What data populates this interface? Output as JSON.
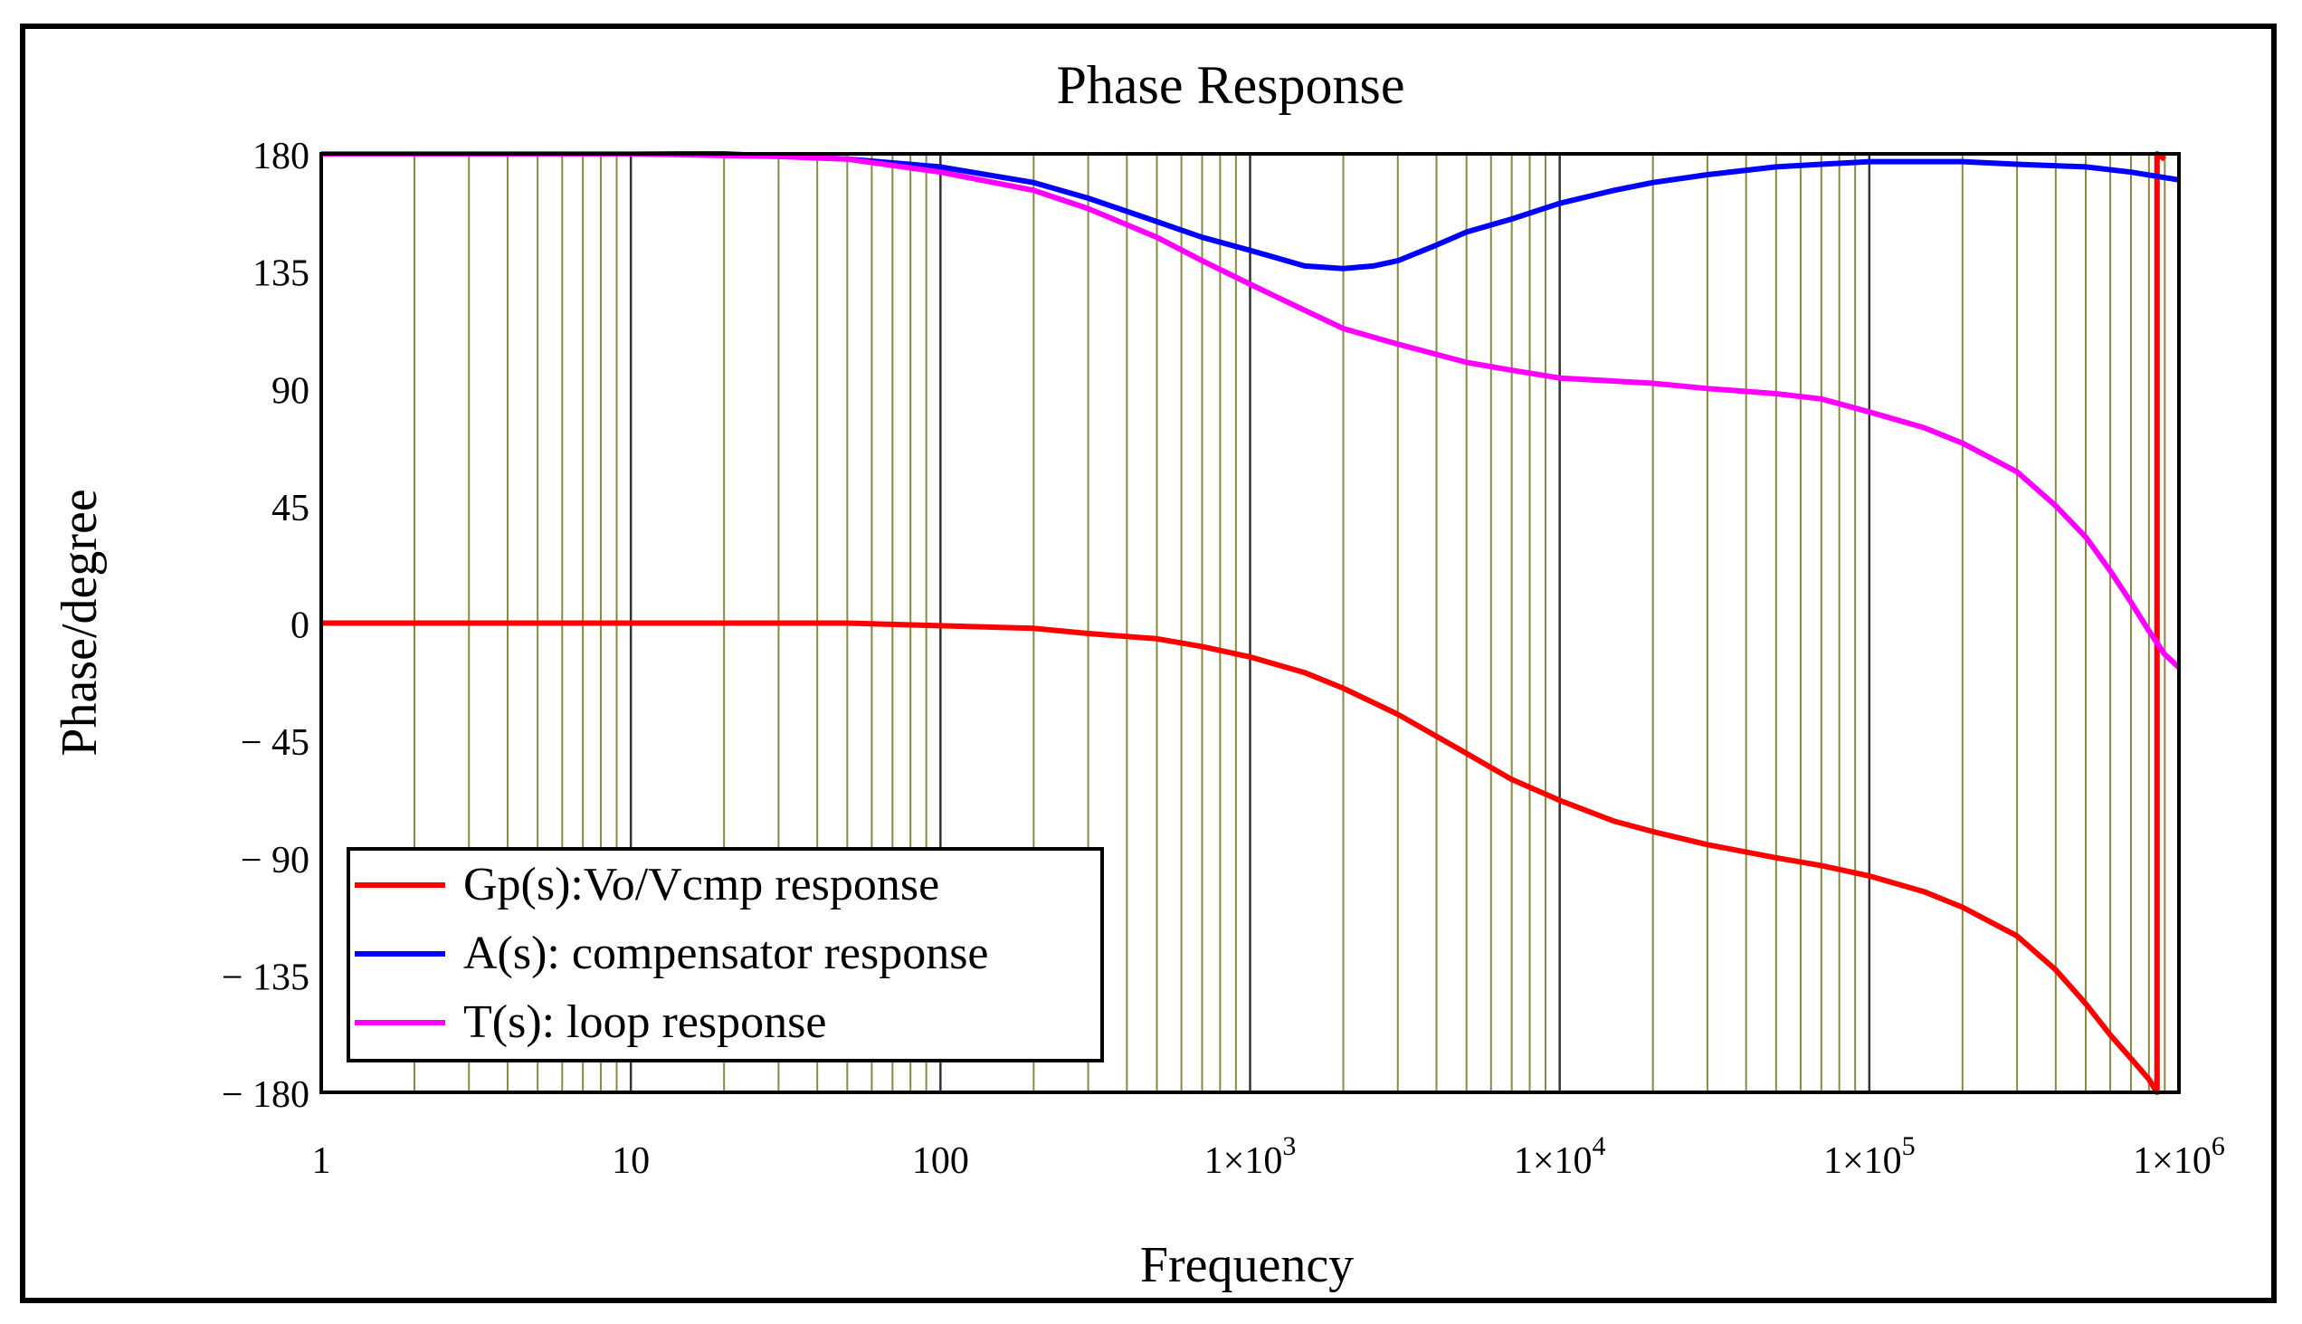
{
  "chart_data": {
    "type": "line",
    "title": "Phase Response",
    "xlabel": "Frequency",
    "ylabel": "Phase/degree",
    "xscale": "log",
    "xlim": [
      1,
      1000000
    ],
    "ylim": [
      -180,
      180
    ],
    "grid": true,
    "y_ticks": [
      180,
      135,
      90,
      45,
      0,
      -45,
      -90,
      -135,
      -180
    ],
    "y_tick_labels": [
      "180",
      "135",
      "90",
      "45",
      "0",
      "− 45",
      "− 90",
      "− 135",
      "− 180"
    ],
    "x_ticks": [
      1,
      10,
      100,
      1000,
      10000,
      100000,
      1000000
    ],
    "x_tick_labels": [
      {
        "base": "1",
        "exp": ""
      },
      {
        "base": "10",
        "exp": ""
      },
      {
        "base": "100",
        "exp": ""
      },
      {
        "base": "1×10",
        "exp": "3"
      },
      {
        "base": "1×10",
        "exp": "4"
      },
      {
        "base": "1×10",
        "exp": "5"
      },
      {
        "base": "1×10",
        "exp": "6"
      }
    ],
    "legend_position": "bottom-left",
    "series": [
      {
        "name": "Gp(s):Vo/Vcmp response",
        "color": "#ff0000",
        "points": [
          [
            1,
            0
          ],
          [
            10,
            0
          ],
          [
            50,
            0
          ],
          [
            100,
            -1
          ],
          [
            200,
            -2
          ],
          [
            300,
            -4
          ],
          [
            500,
            -6
          ],
          [
            700,
            -9
          ],
          [
            1000,
            -13
          ],
          [
            1500,
            -19
          ],
          [
            2000,
            -25
          ],
          [
            3000,
            -35
          ],
          [
            5000,
            -50
          ],
          [
            7000,
            -60
          ],
          [
            10000,
            -68
          ],
          [
            15000,
            -76
          ],
          [
            20000,
            -80
          ],
          [
            30000,
            -85
          ],
          [
            50000,
            -90
          ],
          [
            70000,
            -93
          ],
          [
            100000,
            -97
          ],
          [
            150000,
            -103
          ],
          [
            200000,
            -109
          ],
          [
            300000,
            -120
          ],
          [
            400000,
            -133
          ],
          [
            500000,
            -146
          ],
          [
            600000,
            -158
          ],
          [
            700000,
            -167
          ],
          [
            800000,
            -175
          ],
          [
            850000,
            -180
          ],
          [
            850000,
            180
          ],
          [
            900000,
            178
          ]
        ]
      },
      {
        "name": "A(s): compensator response",
        "color": "#0000ff",
        "points": [
          [
            1,
            180
          ],
          [
            20,
            180
          ],
          [
            50,
            178
          ],
          [
            100,
            175
          ],
          [
            200,
            169
          ],
          [
            300,
            163
          ],
          [
            500,
            154
          ],
          [
            700,
            148
          ],
          [
            1000,
            143
          ],
          [
            1500,
            137
          ],
          [
            2000,
            136
          ],
          [
            2500,
            137
          ],
          [
            3000,
            139
          ],
          [
            4000,
            145
          ],
          [
            5000,
            150
          ],
          [
            7000,
            155
          ],
          [
            10000,
            161
          ],
          [
            15000,
            166
          ],
          [
            20000,
            169
          ],
          [
            30000,
            172
          ],
          [
            50000,
            175
          ],
          [
            70000,
            176
          ],
          [
            100000,
            177
          ],
          [
            200000,
            177
          ],
          [
            300000,
            176
          ],
          [
            500000,
            175
          ],
          [
            700000,
            173
          ],
          [
            1000000,
            170
          ]
        ]
      },
      {
        "name": "T(s): loop response",
        "color": "#ff00ff",
        "points": [
          [
            1,
            180
          ],
          [
            10,
            180
          ],
          [
            30,
            179
          ],
          [
            50,
            178
          ],
          [
            100,
            173
          ],
          [
            200,
            166
          ],
          [
            300,
            159
          ],
          [
            500,
            148
          ],
          [
            700,
            139
          ],
          [
            1000,
            130
          ],
          [
            1500,
            120
          ],
          [
            2000,
            113
          ],
          [
            3000,
            107
          ],
          [
            5000,
            100
          ],
          [
            7000,
            97
          ],
          [
            10000,
            94
          ],
          [
            20000,
            92
          ],
          [
            30000,
            90
          ],
          [
            50000,
            88
          ],
          [
            70000,
            86
          ],
          [
            100000,
            81
          ],
          [
            150000,
            75
          ],
          [
            200000,
            69
          ],
          [
            300000,
            58
          ],
          [
            400000,
            45
          ],
          [
            500000,
            33
          ],
          [
            600000,
            20
          ],
          [
            700000,
            8
          ],
          [
            800000,
            -3
          ],
          [
            900000,
            -12
          ],
          [
            1000000,
            -17
          ]
        ]
      }
    ]
  }
}
